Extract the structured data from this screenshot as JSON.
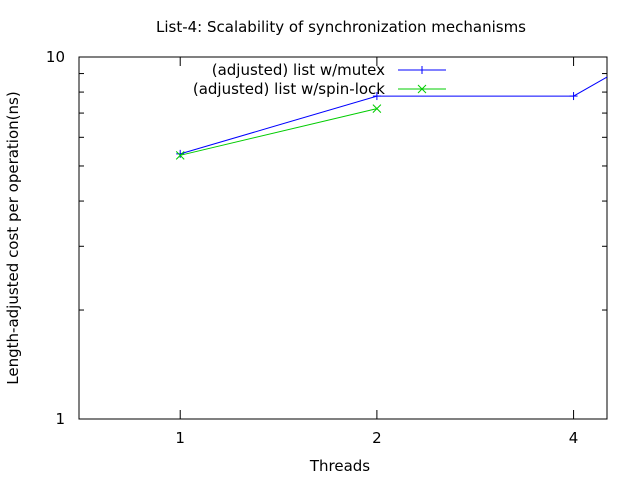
{
  "chart_data": {
    "type": "line",
    "title": "List-4: Scalability of synchronization mechanisms",
    "xlabel": "Threads",
    "ylabel": "Length-adjusted cost per operation(ns)",
    "x_scale": "log2",
    "y_scale": "log10",
    "xlim": [
      0.7,
      4.5
    ],
    "ylim": [
      1,
      10
    ],
    "x_ticks": [
      1,
      2,
      4
    ],
    "x_tick_labels": [
      "1",
      "2",
      "4"
    ],
    "y_tick_labels": [
      "1",
      "10"
    ],
    "grid": false,
    "legend_position": "top",
    "series": [
      {
        "name": "(adjusted) list w/mutex",
        "color": "#0000ff",
        "marker": "plus",
        "x": [
          1,
          2,
          4,
          4.5
        ],
        "y": [
          5.4,
          7.8,
          7.8,
          8.8
        ]
      },
      {
        "name": "(adjusted) list w/spin-lock",
        "color": "#00cc00",
        "marker": "cross",
        "x": [
          1,
          2
        ],
        "y": [
          5.35,
          7.2
        ]
      }
    ]
  }
}
